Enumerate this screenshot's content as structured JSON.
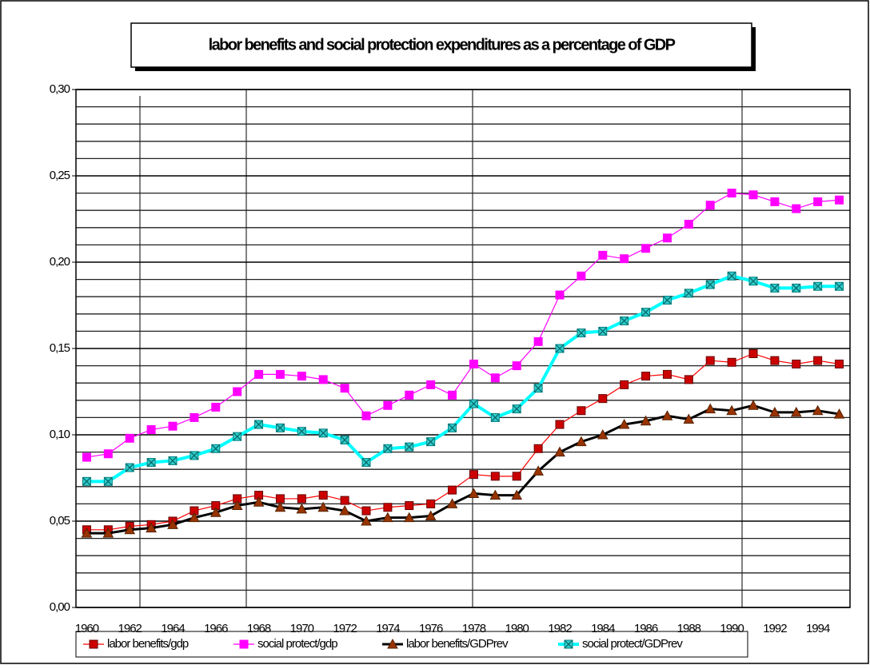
{
  "chart_data": {
    "type": "line",
    "title": "labor benefits and social protection expenditures as a percentage of GDP",
    "categories": [
      1960,
      null,
      1962,
      null,
      1964,
      null,
      1966,
      null,
      1968,
      null,
      1970,
      null,
      1972,
      null,
      1974,
      null,
      1976,
      null,
      1978,
      null,
      1980,
      null,
      1982,
      null,
      1984,
      null,
      1986,
      null,
      1988,
      null,
      1990,
      null,
      1992,
      null,
      1994,
      null
    ],
    "series": [
      {
        "name": "labor benefits/gdp",
        "color": "#ff0000",
        "marker": "square",
        "marker_color": "#cc0000",
        "values": [
          0.045,
          0.045,
          0.047,
          0.048,
          0.05,
          0.056,
          0.059,
          0.063,
          0.065,
          0.063,
          0.063,
          0.065,
          0.062,
          0.056,
          0.058,
          0.059,
          0.06,
          0.068,
          0.077,
          0.076,
          0.076,
          0.092,
          0.106,
          0.114,
          0.121,
          0.129,
          0.134,
          0.135,
          0.132,
          0.143,
          0.142,
          0.147,
          0.143,
          0.141,
          0.143,
          0.141
        ]
      },
      {
        "name": "social protect/gdp",
        "color": "#ff00ff",
        "marker": "square",
        "marker_color": "#ff00ff",
        "values": [
          0.087,
          0.089,
          0.098,
          0.103,
          0.105,
          0.11,
          0.116,
          0.125,
          0.135,
          0.135,
          0.134,
          0.132,
          0.127,
          0.111,
          0.117,
          0.123,
          0.129,
          0.123,
          0.141,
          0.133,
          0.14,
          0.154,
          0.181,
          0.192,
          0.204,
          0.202,
          0.208,
          0.214,
          0.222,
          0.233,
          0.24,
          0.239,
          0.235,
          0.231,
          0.235,
          0.236
        ]
      },
      {
        "name": "labor benefits/GDPrev",
        "color": "#000000",
        "marker": "triangle",
        "marker_color": "#993300",
        "values": [
          0.043,
          0.043,
          0.045,
          0.046,
          0.048,
          0.052,
          0.055,
          0.059,
          0.061,
          0.058,
          0.057,
          0.058,
          0.056,
          0.05,
          0.052,
          0.052,
          0.053,
          0.06,
          0.066,
          0.065,
          0.065,
          0.079,
          0.09,
          0.096,
          0.1,
          0.106,
          0.108,
          0.111,
          0.109,
          0.115,
          0.114,
          0.117,
          0.113,
          0.113,
          0.114,
          0.112
        ]
      },
      {
        "name": "social protect/GDPrev",
        "color": "#00ffff",
        "marker": "xsquare",
        "marker_color": "#33cccc",
        "values": [
          0.073,
          0.073,
          0.081,
          0.084,
          0.085,
          0.088,
          0.092,
          0.099,
          0.106,
          0.104,
          0.102,
          0.101,
          0.097,
          0.084,
          0.092,
          0.093,
          0.096,
          0.104,
          0.118,
          0.11,
          0.115,
          0.127,
          0.15,
          0.159,
          0.16,
          0.166,
          0.171,
          0.178,
          0.182,
          0.187,
          0.192,
          0.189,
          0.185,
          0.185,
          0.186,
          0.186
        ]
      }
    ],
    "ylim": [
      0,
      0.3
    ],
    "yticks": [
      {
        "value": 0,
        "label": "0,00"
      },
      {
        "value": 0.05,
        "label": "0,05"
      },
      {
        "value": 0.1,
        "label": "0,10"
      },
      {
        "value": 0.15,
        "label": "0,15"
      },
      {
        "value": 0.2,
        "label": "0,20"
      },
      {
        "value": 0.25,
        "label": "0,25"
      },
      {
        "value": 0.3,
        "label": "0,30"
      }
    ],
    "minor_yticks": [
      0.01,
      0.02,
      0.03,
      0.04,
      0.06,
      0.07,
      0.08,
      0.09,
      0.11,
      0.12,
      0.13,
      0.14,
      0.16,
      0.17,
      0.18,
      0.19,
      0.21,
      0.22,
      0.23,
      0.24,
      0.26,
      0.27,
      0.28,
      0.29
    ],
    "grid": true,
    "legend": "bottom"
  }
}
